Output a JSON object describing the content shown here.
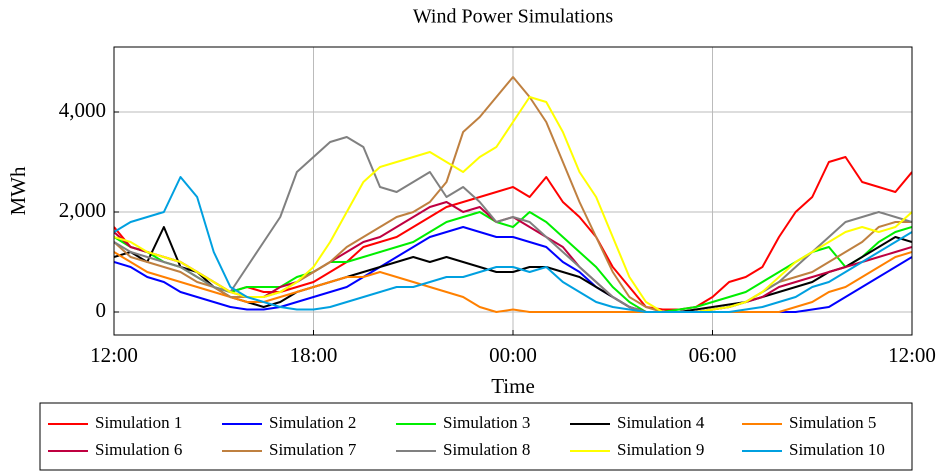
{
  "chart_data": {
    "type": "line",
    "title": "Wind Power Simulations",
    "xlabel": "Time",
    "ylabel": "MWh",
    "x": [
      0,
      0.5,
      1,
      1.5,
      2,
      2.5,
      3,
      3.5,
      4,
      4.5,
      5,
      5.5,
      6,
      6.5,
      7,
      7.5,
      8,
      8.5,
      9,
      9.5,
      10,
      10.5,
      11,
      11.5,
      12,
      12.5,
      13,
      13.5,
      14,
      14.5,
      15,
      15.5,
      16,
      16.5,
      17,
      17.5,
      18,
      18.5,
      19,
      19.5,
      20,
      20.5,
      21,
      21.5,
      22,
      22.5,
      23,
      23.5,
      24
    ],
    "xlim": [
      0,
      24
    ],
    "xticks": [
      {
        "value": 0,
        "label": "12:00"
      },
      {
        "value": 6,
        "label": "18:00"
      },
      {
        "value": 12,
        "label": "00:00"
      },
      {
        "value": 18,
        "label": "06:00"
      },
      {
        "value": 24,
        "label": "12:00"
      }
    ],
    "ylim": [
      -460,
      5300
    ],
    "yticks": [
      0,
      {
        "value": 2000,
        "label": "2,000"
      },
      {
        "value": 4000,
        "label": "4,000"
      }
    ],
    "grid": true,
    "series": [
      {
        "name": "Simulation 1",
        "color": "#ff0000",
        "values": [
          1700,
          1300,
          1200,
          1100,
          1000,
          800,
          600,
          400,
          500,
          400,
          400,
          500,
          600,
          800,
          1000,
          1300,
          1400,
          1500,
          1700,
          1900,
          2100,
          2200,
          2300,
          2400,
          2500,
          2300,
          2700,
          2200,
          1900,
          1500,
          900,
          500,
          100,
          50,
          50,
          100,
          300,
          600,
          700,
          900,
          1500,
          2000,
          2300,
          3000,
          3100,
          2600,
          2500,
          2400,
          2800
        ]
      },
      {
        "name": "Simulation 2",
        "color": "#0000ff",
        "values": [
          1000,
          900,
          700,
          600,
          400,
          300,
          200,
          100,
          50,
          50,
          100,
          200,
          300,
          400,
          500,
          700,
          900,
          1100,
          1300,
          1500,
          1600,
          1700,
          1600,
          1500,
          1500,
          1400,
          1300,
          1000,
          800,
          500,
          300,
          100,
          0,
          0,
          0,
          0,
          0,
          0,
          0,
          0,
          0,
          0,
          50,
          100,
          300,
          500,
          700,
          900,
          1100
        ]
      },
      {
        "name": "Simulation 3",
        "color": "#00ee00",
        "values": [
          1500,
          1300,
          1200,
          1000,
          900,
          700,
          500,
          400,
          500,
          500,
          500,
          700,
          800,
          1000,
          1000,
          1100,
          1200,
          1300,
          1400,
          1600,
          1800,
          1900,
          2000,
          1800,
          1700,
          2000,
          1800,
          1500,
          1200,
          900,
          500,
          200,
          0,
          0,
          50,
          100,
          200,
          300,
          400,
          600,
          800,
          1000,
          1200,
          1300,
          900,
          1100,
          1400,
          1600,
          1700
        ]
      },
      {
        "name": "Simulation 4",
        "color": "#000000",
        "values": [
          1100,
          1200,
          1000,
          1700,
          900,
          800,
          500,
          300,
          200,
          100,
          200,
          400,
          500,
          600,
          700,
          800,
          900,
          1000,
          1100,
          1000,
          1100,
          1000,
          900,
          800,
          800,
          900,
          900,
          800,
          700,
          500,
          300,
          100,
          0,
          0,
          0,
          50,
          100,
          150,
          200,
          300,
          400,
          500,
          600,
          800,
          900,
          1100,
          1300,
          1500,
          1400
        ]
      },
      {
        "name": "Simulation 5",
        "color": "#ff8000",
        "values": [
          1200,
          1000,
          800,
          700,
          600,
          500,
          400,
          300,
          200,
          200,
          300,
          400,
          500,
          600,
          700,
          700,
          800,
          700,
          600,
          500,
          400,
          300,
          100,
          0,
          50,
          0,
          0,
          0,
          0,
          0,
          0,
          0,
          0,
          0,
          0,
          0,
          0,
          0,
          0,
          0,
          0,
          100,
          200,
          400,
          500,
          700,
          900,
          1100,
          1200
        ]
      },
      {
        "name": "Simulation 6",
        "color": "#bf0040",
        "values": [
          1600,
          1300,
          1200,
          1100,
          1000,
          800,
          600,
          400,
          300,
          300,
          500,
          600,
          800,
          1000,
          1200,
          1400,
          1500,
          1700,
          1900,
          2100,
          2200,
          2000,
          2100,
          1800,
          1900,
          1700,
          1500,
          1300,
          900,
          600,
          300,
          100,
          0,
          0,
          0,
          0,
          50,
          100,
          200,
          300,
          500,
          600,
          700,
          800,
          900,
          1000,
          1100,
          1200,
          1300
        ]
      },
      {
        "name": "Simulation 7",
        "color": "#bf8040",
        "values": [
          1400,
          1100,
          1000,
          900,
          800,
          600,
          500,
          300,
          300,
          300,
          400,
          600,
          800,
          1000,
          1300,
          1500,
          1700,
          1900,
          2000,
          2200,
          2600,
          3600,
          3900,
          4300,
          4700,
          4300,
          3800,
          3000,
          2200,
          1500,
          800,
          300,
          100,
          0,
          0,
          0,
          50,
          100,
          200,
          400,
          600,
          700,
          800,
          1000,
          1200,
          1400,
          1700,
          1800,
          1800
        ]
      },
      {
        "name": "Simulation 8",
        "color": "#808080",
        "values": [
          1400,
          1200,
          1100,
          1000,
          900,
          700,
          500,
          400,
          900,
          1400,
          1900,
          2800,
          3100,
          3400,
          3500,
          3300,
          2500,
          2400,
          2600,
          2800,
          2300,
          2500,
          2200,
          1800,
          1900,
          1800,
          1500,
          1200,
          900,
          600,
          300,
          100,
          0,
          0,
          0,
          0,
          50,
          100,
          200,
          400,
          600,
          900,
          1200,
          1500,
          1800,
          1900,
          2000,
          1900,
          1800
        ]
      },
      {
        "name": "Simulation 9",
        "color": "#ffff00",
        "values": [
          1500,
          1400,
          1200,
          1100,
          1000,
          800,
          600,
          400,
          300,
          300,
          400,
          600,
          900,
          1400,
          2000,
          2600,
          2900,
          3000,
          3100,
          3200,
          3000,
          2800,
          3100,
          3300,
          3800,
          4300,
          4200,
          3600,
          2800,
          2300,
          1500,
          700,
          200,
          0,
          0,
          0,
          50,
          100,
          200,
          400,
          700,
          1000,
          1200,
          1400,
          1600,
          1700,
          1600,
          1700,
          2000
        ]
      },
      {
        "name": "Simulation 10",
        "color": "#00a0e0",
        "values": [
          1600,
          1800,
          1900,
          2000,
          2700,
          2300,
          1200,
          500,
          300,
          200,
          100,
          50,
          50,
          100,
          200,
          300,
          400,
          500,
          500,
          600,
          700,
          700,
          800,
          900,
          900,
          800,
          900,
          600,
          400,
          200,
          100,
          50,
          0,
          0,
          0,
          0,
          0,
          0,
          50,
          100,
          200,
          300,
          500,
          600,
          800,
          1000,
          1200,
          1400,
          1600
        ]
      }
    ]
  }
}
